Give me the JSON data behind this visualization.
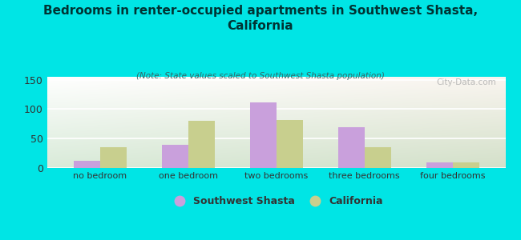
{
  "categories": [
    "no bedroom",
    "one bedroom",
    "two bedrooms",
    "three bedrooms",
    "four bedrooms"
  ],
  "sw_shasta": [
    12,
    40,
    112,
    70,
    10
  ],
  "california": [
    35,
    80,
    82,
    36,
    10
  ],
  "sw_shasta_color": "#c9a0dc",
  "california_color": "#c8cf8e",
  "title": "Bedrooms in renter-occupied apartments in Southwest Shasta,\nCalifornia",
  "subtitle": "(Note: State values scaled to Southwest Shasta population)",
  "legend_sw": "Southwest Shasta",
  "legend_ca": "California",
  "ylim": [
    0,
    155
  ],
  "yticks": [
    0,
    50,
    100,
    150
  ],
  "background_color": "#00e5e5",
  "bar_width": 0.3,
  "watermark": "City-Data.com"
}
